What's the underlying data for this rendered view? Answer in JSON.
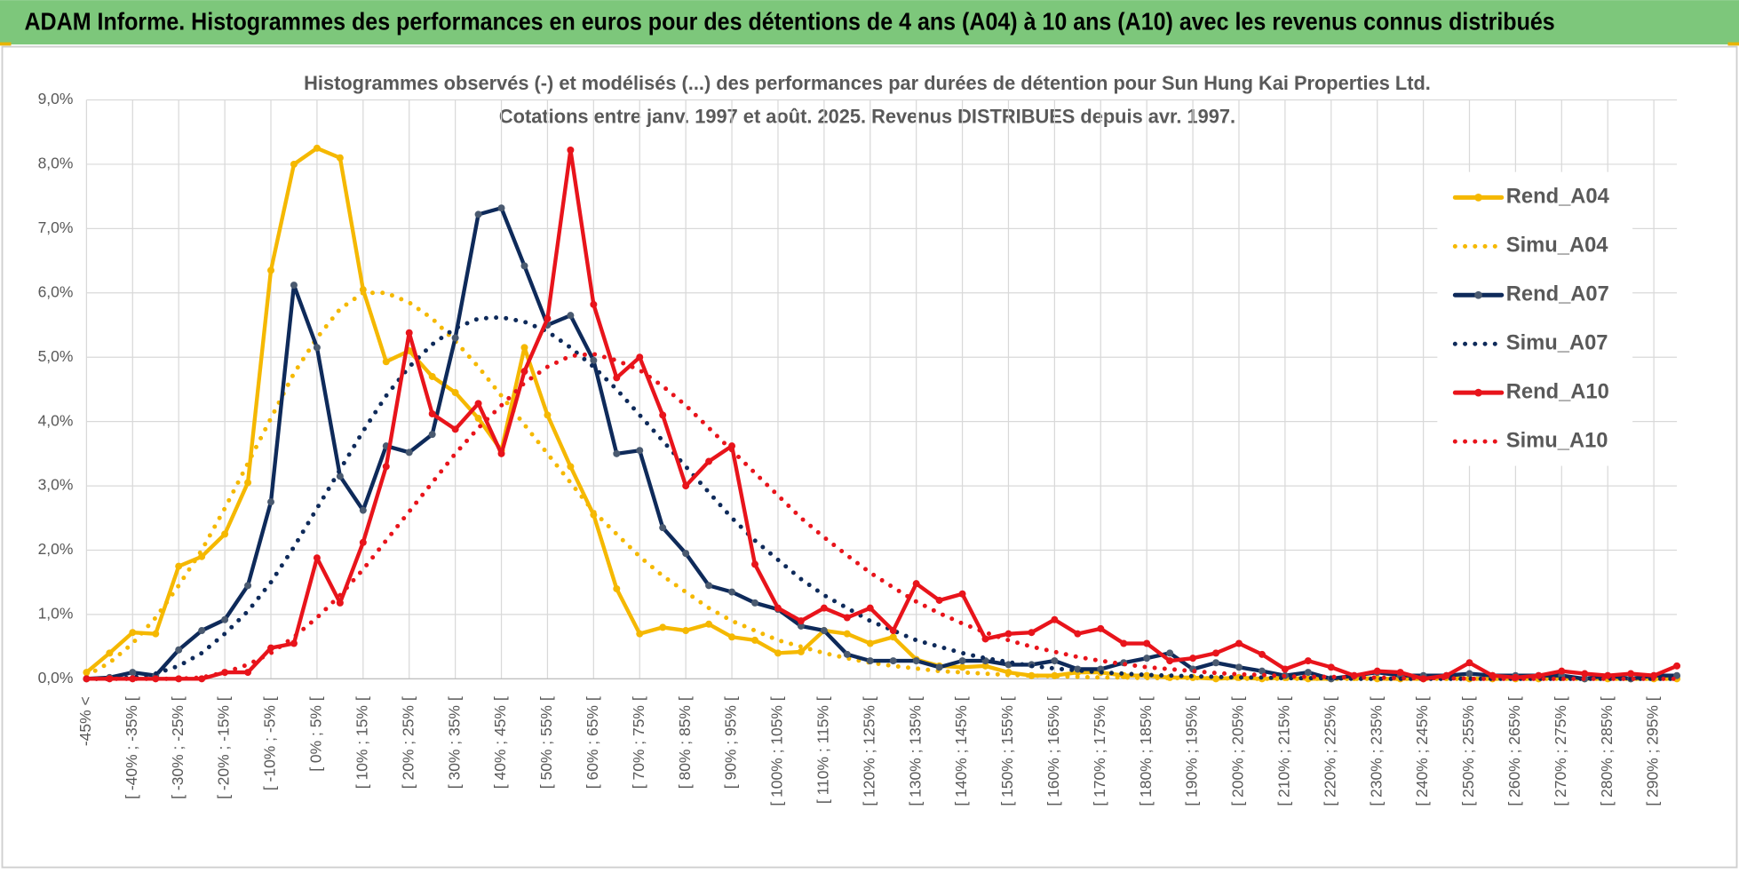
{
  "page_title": "ADAM Informe. Histogrammes des performances en euros pour des détentions de 4 ans (A04) à 10 ans (A10) avec les revenus connus distribués",
  "chart_data": {
    "type": "line",
    "title": "Histogrammes observés (-) et modélisés (...) des performances par durées de détention pour Sun Hung Kai Properties Ltd.",
    "subtitle": "Cotations entre janv. 1997 et août. 2025. Revenus DISTRIBUES depuis avr. 1997.",
    "categories": [
      "-45% <",
      null,
      "[ -40% ; -35% [",
      null,
      "[ -30% ; -25% [",
      null,
      "[ -20% ; -15% [",
      null,
      "[ -10% ; -5% [",
      null,
      "[ 0% ; 5% [",
      null,
      "[ 10% ; 15% [",
      null,
      "[ 20% ; 25% [",
      null,
      "[ 30% ; 35% [",
      null,
      "[ 40% ; 45% [",
      null,
      "[ 50% ; 55% [",
      null,
      "[ 60% ; 65% [",
      null,
      "[ 70% ; 75% [",
      null,
      "[ 80% ; 85% [",
      null,
      "[ 90% ; 95% [",
      null,
      "[ 100% ; 105% [",
      null,
      "[ 110% ; 115% [",
      null,
      "[ 120% ; 125% [",
      null,
      "[ 130% ; 135% [",
      null,
      "[ 140% ; 145% [",
      null,
      "[ 150% ; 155% [",
      null,
      "[ 160% ; 165% [",
      null,
      "[ 170% ; 175% [",
      null,
      "[ 180% ; 185% [",
      null,
      "[ 190% ; 195% [",
      null,
      "[ 200% ; 205% [",
      null,
      "[ 210% ; 215% [",
      null,
      "[ 220% ; 225% [",
      null,
      "[ 230% ; 235% [",
      null,
      "[ 240% ; 245% [",
      null,
      "[ 250% ; 255% [",
      null,
      "[ 260% ; 265% [",
      null,
      "[ 270% ; 275% [",
      null,
      "[ 280% ; 285% [",
      null,
      "[ 290% ; 295% [",
      null
    ],
    "series": [
      {
        "name": "Rend_A04",
        "color": "#f5b800",
        "style": "solid",
        "marker_color": "#f5b800",
        "values": [
          0.1,
          0.4,
          0.72,
          0.7,
          1.75,
          1.9,
          2.25,
          3.05,
          6.35,
          8.0,
          8.25,
          8.1,
          6.05,
          4.93,
          5.1,
          4.7,
          4.45,
          4.05,
          3.55,
          5.15,
          4.1,
          3.3,
          2.55,
          1.4,
          0.7,
          0.8,
          0.75,
          0.85,
          0.65,
          0.6,
          0.4,
          0.42,
          0.75,
          0.7,
          0.55,
          0.65,
          0.3,
          0.2,
          0.18,
          0.2,
          0.1,
          0.05,
          0.05,
          0.1,
          0.1,
          0.05,
          0.05,
          0.02,
          0.02,
          0.0,
          0.02,
          0.0,
          0.02,
          0.0,
          0.0,
          0.02,
          0.0,
          0.0,
          0.0,
          0.02,
          0.0,
          0.0,
          0.0,
          0.0,
          0.02,
          0.0,
          0.0,
          0.0,
          0.0,
          0.0
        ]
      },
      {
        "name": "Simu_A04",
        "color": "#f5b800",
        "style": "dotted",
        "values": [
          0.05,
          0.25,
          0.55,
          0.95,
          1.45,
          2.0,
          2.65,
          3.35,
          4.05,
          4.75,
          5.3,
          5.75,
          6.0,
          6.0,
          5.85,
          5.6,
          5.25,
          4.85,
          4.4,
          3.95,
          3.5,
          3.05,
          2.6,
          2.25,
          1.9,
          1.6,
          1.35,
          1.1,
          0.9,
          0.75,
          0.6,
          0.5,
          0.4,
          0.32,
          0.25,
          0.2,
          0.16,
          0.12,
          0.1,
          0.08,
          0.06,
          0.05,
          0.04,
          0.03,
          0.02,
          0.02,
          0.01,
          0.01,
          0.01,
          0.01,
          0.0,
          0.0,
          0.0,
          0.0,
          0.0,
          0.0,
          0.0,
          0.0,
          0.0,
          0.0,
          0.0,
          0.0,
          0.0,
          0.0,
          0.0,
          0.0,
          0.0,
          0.0,
          0.0,
          0.0
        ]
      },
      {
        "name": "Rend_A07",
        "color": "#0e2a5a",
        "style": "solid",
        "marker_color": "#4a5a70",
        "values": [
          0.0,
          0.02,
          0.1,
          0.05,
          0.45,
          0.75,
          0.92,
          1.45,
          2.75,
          6.12,
          5.15,
          3.15,
          2.62,
          3.62,
          3.52,
          3.8,
          5.3,
          7.22,
          7.32,
          6.42,
          5.5,
          5.65,
          4.95,
          3.5,
          3.55,
          2.35,
          1.95,
          1.45,
          1.35,
          1.18,
          1.08,
          0.82,
          0.75,
          0.38,
          0.28,
          0.28,
          0.28,
          0.18,
          0.28,
          0.28,
          0.22,
          0.22,
          0.28,
          0.15,
          0.15,
          0.25,
          0.32,
          0.4,
          0.15,
          0.25,
          0.18,
          0.12,
          0.05,
          0.1,
          0.0,
          0.05,
          0.1,
          0.05,
          0.05,
          0.05,
          0.08,
          0.05,
          0.05,
          0.05,
          0.05,
          0.0,
          0.05,
          0.0,
          0.05,
          0.05
        ]
      },
      {
        "name": "Simu_A07",
        "color": "#0e2a5a",
        "style": "dotted",
        "values": [
          0.0,
          0.0,
          0.02,
          0.08,
          0.2,
          0.4,
          0.7,
          1.05,
          1.5,
          2.05,
          2.65,
          3.25,
          3.85,
          4.4,
          4.85,
          5.2,
          5.45,
          5.6,
          5.62,
          5.55,
          5.4,
          5.15,
          4.85,
          4.5,
          4.1,
          3.7,
          3.3,
          2.9,
          2.5,
          2.15,
          1.85,
          1.55,
          1.3,
          1.1,
          0.9,
          0.75,
          0.6,
          0.5,
          0.4,
          0.32,
          0.26,
          0.2,
          0.16,
          0.13,
          0.1,
          0.08,
          0.06,
          0.05,
          0.04,
          0.03,
          0.02,
          0.02,
          0.01,
          0.01,
          0.01,
          0.0,
          0.0,
          0.0,
          0.0,
          0.0,
          0.0,
          0.0,
          0.0,
          0.0,
          0.0,
          0.0,
          0.0,
          0.0,
          0.0,
          0.0
        ]
      },
      {
        "name": "Rend_A10",
        "color": "#e8141b",
        "style": "solid",
        "marker_color": "#e8141b",
        "values": [
          0.0,
          0.0,
          0.0,
          0.0,
          0.0,
          0.0,
          0.1,
          0.1,
          0.48,
          0.55,
          1.88,
          1.18,
          2.12,
          3.3,
          5.38,
          4.12,
          3.88,
          4.28,
          3.5,
          4.78,
          5.6,
          8.22,
          5.82,
          4.68,
          5.0,
          4.1,
          3.0,
          3.38,
          3.62,
          1.78,
          1.1,
          0.9,
          1.1,
          0.95,
          1.1,
          0.75,
          1.48,
          1.22,
          1.32,
          0.62,
          0.7,
          0.72,
          0.92,
          0.7,
          0.78,
          0.55,
          0.55,
          0.28,
          0.32,
          0.4,
          0.55,
          0.38,
          0.15,
          0.28,
          0.18,
          0.05,
          0.12,
          0.1,
          0.0,
          0.05,
          0.25,
          0.05,
          0.02,
          0.05,
          0.12,
          0.08,
          0.05,
          0.08,
          0.05,
          0.2
        ]
      },
      {
        "name": "Simu_A10",
        "color": "#e8141b",
        "style": "dotted",
        "values": [
          0.0,
          0.0,
          0.0,
          0.0,
          0.0,
          0.02,
          0.1,
          0.22,
          0.4,
          0.65,
          0.95,
          1.3,
          1.7,
          2.15,
          2.6,
          3.05,
          3.5,
          3.9,
          4.25,
          4.6,
          4.85,
          5.02,
          5.05,
          4.95,
          4.8,
          4.55,
          4.25,
          3.9,
          3.55,
          3.2,
          2.85,
          2.5,
          2.2,
          1.92,
          1.65,
          1.42,
          1.2,
          1.02,
          0.86,
          0.72,
          0.6,
          0.5,
          0.42,
          0.34,
          0.28,
          0.23,
          0.18,
          0.15,
          0.12,
          0.09,
          0.07,
          0.06,
          0.04,
          0.03,
          0.03,
          0.02,
          0.02,
          0.01,
          0.01,
          0.01,
          0.0,
          0.0,
          0.0,
          0.0,
          0.0,
          0.0,
          0.0,
          0.0,
          0.0,
          0.0
        ]
      }
    ],
    "ylim": [
      0,
      9
    ],
    "yticks": [
      {
        "value": 0,
        "label": "0,0%"
      },
      {
        "value": 1,
        "label": "1,0%"
      },
      {
        "value": 2,
        "label": "2,0%"
      },
      {
        "value": 3,
        "label": "3,0%"
      },
      {
        "value": 4,
        "label": "4,0%"
      },
      {
        "value": 5,
        "label": "5,0%"
      },
      {
        "value": 6,
        "label": "6,0%"
      },
      {
        "value": 7,
        "label": "7,0%"
      },
      {
        "value": 8,
        "label": "8,0%"
      },
      {
        "value": 9,
        "label": "9,0%"
      }
    ],
    "grid": true,
    "legend": "right"
  }
}
